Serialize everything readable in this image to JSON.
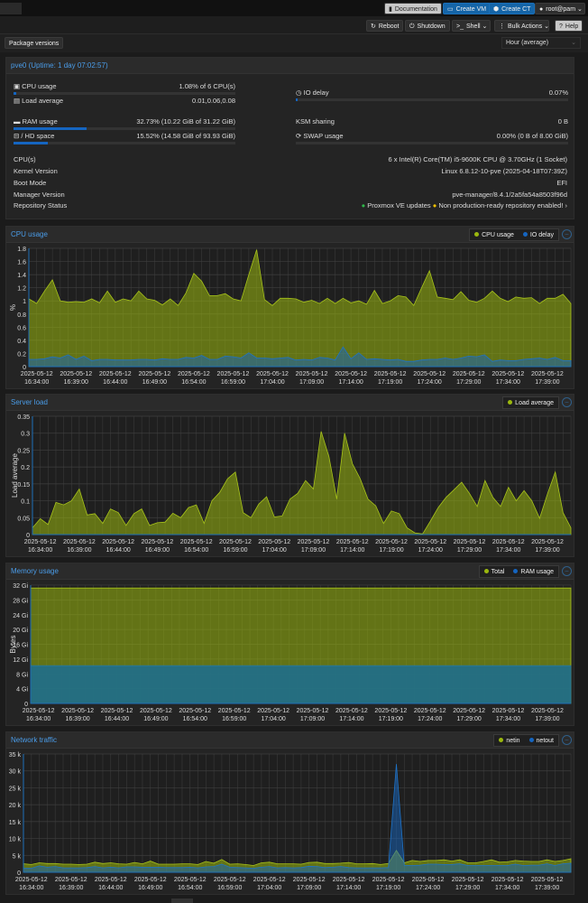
{
  "topbar": {
    "documentation": "Documentation",
    "create_vm": "Create VM",
    "create_ct": "Create CT",
    "user": "root@pam"
  },
  "toolbar": {
    "reboot": "Reboot",
    "shutdown": "Shutdown",
    "shell": "Shell",
    "bulk_actions": "Bulk Actions",
    "help": "Help"
  },
  "subbar": {
    "package_versions": "Package versions",
    "timeframe": "Hour (average)"
  },
  "summary": {
    "title": "pve0 (Uptime: 1 day 07:02:57)",
    "cpu_label": "CPU usage",
    "cpu_value": "1.08% of 6 CPU(s)",
    "cpu_pct": 1.08,
    "load_label": "Load average",
    "load_value": "0.01,0.06,0.08",
    "io_label": "IO delay",
    "io_value": "0.07%",
    "io_pct": 0.07,
    "ram_label": "RAM usage",
    "ram_value": "32.73% (10.22 GiB of 31.22 GiB)",
    "ram_pct": 32.73,
    "ksm_label": "KSM sharing",
    "ksm_value": "0 B",
    "hd_label": "/ HD space",
    "hd_value": "15.52% (14.58 GiB of 93.93 GiB)",
    "hd_pct": 15.52,
    "swap_label": "SWAP usage",
    "swap_value": "0.00% (0 B of 8.00 GiB)",
    "swap_pct": 0,
    "info": [
      {
        "label": "CPU(s)",
        "value": "6 x Intel(R) Core(TM) i5-9600K CPU @ 3.70GHz (1 Socket)"
      },
      {
        "label": "Kernel Version",
        "value": "Linux 6.8.12-10-pve (2025-04-18T07:39Z)"
      },
      {
        "label": "Boot Mode",
        "value": "EFI"
      },
      {
        "label": "Manager Version",
        "value": "pve-manager/8.4.1/2a5fa54a8503f96d"
      }
    ],
    "repo_label": "Repository Status",
    "repo_ok": "Proxmox VE updates",
    "repo_warn": "Non production-ready repository enabled!"
  },
  "colors": {
    "green": "#9bb80e",
    "blue": "#1565c0",
    "accent": "#4a9ce8"
  },
  "chart_data": [
    {
      "type": "area",
      "title": "CPU usage",
      "ylabel": "%",
      "ylim": [
        0,
        1.8
      ],
      "yticks": [
        "0",
        "0.2",
        "0.4",
        "0.6",
        "0.8",
        "1",
        "1.2",
        "1.4",
        "1.6",
        "1.8"
      ],
      "grid": true,
      "legend": "top-right",
      "x_date": "2025-05-12",
      "x_ticks": [
        "16:34:00",
        "16:39:00",
        "16:44:00",
        "16:49:00",
        "16:54:00",
        "16:59:00",
        "17:04:00",
        "17:09:00",
        "17:14:00",
        "17:19:00",
        "17:24:00",
        "17:29:00",
        "17:34:00",
        "17:39:00"
      ],
      "series": [
        {
          "name": "CPU usage",
          "color": "#9bb80e",
          "values": [
            1.03,
            0.96,
            1.15,
            1.32,
            1.0,
            0.98,
            0.99,
            0.98,
            1.03,
            0.97,
            1.15,
            0.98,
            1.03,
            1.0,
            1.15,
            1.03,
            1.01,
            0.94,
            1.03,
            0.93,
            1.12,
            1.42,
            1.3,
            1.08,
            1.08,
            1.11,
            1.03,
            1.0,
            1.4,
            1.78,
            1.02,
            0.93,
            1.04,
            1.04,
            1.03,
            0.98,
            1.01,
            0.96,
            1.04,
            0.96,
            1.04,
            0.97,
            1.0,
            0.95,
            1.16,
            0.96,
            1.0,
            1.08,
            1.06,
            0.93,
            1.2,
            1.46,
            1.06,
            1.04,
            1.02,
            1.14,
            1.01,
            0.98,
            1.04,
            1.15,
            1.04,
            0.99,
            1.06,
            1.04,
            1.05,
            0.96,
            1.04,
            1.04,
            1.1,
            0.96
          ]
        },
        {
          "name": "IO delay",
          "color": "#1565c0",
          "values": [
            0.11,
            0.11,
            0.12,
            0.15,
            0.13,
            0.18,
            0.11,
            0.16,
            0.09,
            0.11,
            0.11,
            0.1,
            0.1,
            0.1,
            0.11,
            0.11,
            0.1,
            0.12,
            0.11,
            0.11,
            0.14,
            0.13,
            0.17,
            0.11,
            0.11,
            0.16,
            0.15,
            0.13,
            0.21,
            0.13,
            0.13,
            0.12,
            0.13,
            0.14,
            0.1,
            0.11,
            0.1,
            0.14,
            0.13,
            0.1,
            0.3,
            0.12,
            0.21,
            0.11,
            0.12,
            0.11,
            0.1,
            0.11,
            0.08,
            0.08,
            0.1,
            0.11,
            0.11,
            0.13,
            0.11,
            0.13,
            0.16,
            0.15,
            0.18,
            0.08,
            0.1,
            0.09,
            0.09,
            0.11,
            0.12,
            0.13,
            0.11,
            0.14,
            0.09,
            0.09
          ]
        }
      ]
    },
    {
      "type": "area",
      "title": "Server load",
      "ylabel": "Load average",
      "ylim": [
        0,
        0.35
      ],
      "yticks": [
        "0",
        "0.05",
        "0.1",
        "0.15",
        "0.2",
        "0.25",
        "0.3",
        "0.35"
      ],
      "grid": true,
      "legend": "top-right",
      "x_date": "2025-05-12",
      "x_ticks": [
        "16:34:00",
        "16:39:00",
        "16:44:00",
        "16:49:00",
        "16:54:00",
        "16:59:00",
        "17:04:00",
        "17:09:00",
        "17:14:00",
        "17:19:00",
        "17:24:00",
        "17:29:00",
        "17:34:00",
        "17:39:00"
      ],
      "series": [
        {
          "name": "Load average",
          "color": "#9bb80e",
          "values": [
            0.02,
            0.047,
            0.03,
            0.095,
            0.088,
            0.1,
            0.135,
            0.058,
            0.062,
            0.033,
            0.076,
            0.065,
            0.027,
            0.062,
            0.076,
            0.027,
            0.035,
            0.037,
            0.063,
            0.05,
            0.08,
            0.088,
            0.033,
            0.1,
            0.125,
            0.165,
            0.185,
            0.065,
            0.05,
            0.09,
            0.112,
            0.052,
            0.055,
            0.105,
            0.122,
            0.16,
            0.135,
            0.305,
            0.23,
            0.105,
            0.3,
            0.21,
            0.165,
            0.105,
            0.085,
            0.033,
            0.07,
            0.062,
            0.02,
            0.005,
            0.002,
            0.04,
            0.08,
            0.11,
            0.132,
            0.155,
            0.122,
            0.083,
            0.16,
            0.11,
            0.083,
            0.14,
            0.1,
            0.13,
            0.1,
            0.048,
            0.12,
            0.185,
            0.065,
            0.02
          ]
        }
      ]
    },
    {
      "type": "area",
      "title": "Memory usage",
      "ylabel": "Bytes",
      "ylim": [
        0,
        32
      ],
      "yticks": [
        "0",
        "4 Gi",
        "8 Gi",
        "12 Gi",
        "16 Gi",
        "20 Gi",
        "24 Gi",
        "28 Gi",
        "32 Gi"
      ],
      "grid": true,
      "legend": "top-right",
      "x_date": "2025-05-12",
      "x_ticks": [
        "16:34:00",
        "16:39:00",
        "16:44:00",
        "16:49:00",
        "16:54:00",
        "16:59:00",
        "17:04:00",
        "17:09:00",
        "17:14:00",
        "17:19:00",
        "17:24:00",
        "17:29:00",
        "17:34:00",
        "17:39:00"
      ],
      "series": [
        {
          "name": "Total",
          "color": "#9bb80e",
          "values": [
            31.22,
            31.22,
            31.22,
            31.22,
            31.22,
            31.22,
            31.22,
            31.22,
            31.22,
            31.22,
            31.22,
            31.22,
            31.22,
            31.22,
            31.22,
            31.22,
            31.22,
            31.22,
            31.22,
            31.22,
            31.22,
            31.22,
            31.22,
            31.22,
            31.22,
            31.22,
            31.22,
            31.22,
            31.22,
            31.22,
            31.22,
            31.22,
            31.22,
            31.22,
            31.22,
            31.22,
            31.22,
            31.22,
            31.22,
            31.22,
            31.22,
            31.22,
            31.22,
            31.22,
            31.22,
            31.22,
            31.22,
            31.22,
            31.22,
            31.22,
            31.22,
            31.22,
            31.22,
            31.22,
            31.22,
            31.22,
            31.22,
            31.22,
            31.22,
            31.22,
            31.22,
            31.22,
            31.22,
            31.22,
            31.22,
            31.22,
            31.22,
            31.22,
            31.22,
            31.22
          ]
        },
        {
          "name": "RAM usage",
          "color": "#1565c0",
          "values": [
            10.2,
            10.2,
            10.2,
            10.2,
            10.2,
            10.2,
            10.2,
            10.2,
            10.2,
            10.2,
            10.2,
            10.2,
            10.2,
            10.2,
            10.2,
            10.2,
            10.2,
            10.2,
            10.2,
            10.2,
            10.2,
            10.2,
            10.2,
            10.2,
            10.2,
            10.2,
            10.2,
            10.2,
            10.2,
            10.2,
            10.2,
            10.2,
            10.2,
            10.2,
            10.2,
            10.2,
            10.2,
            10.2,
            10.2,
            10.2,
            10.2,
            10.2,
            10.2,
            10.2,
            10.2,
            10.2,
            10.2,
            10.2,
            10.2,
            10.2,
            10.2,
            10.2,
            10.2,
            10.2,
            10.2,
            10.2,
            10.2,
            10.2,
            10.2,
            10.2,
            10.2,
            10.2,
            10.2,
            10.2,
            10.2,
            10.2,
            10.2,
            10.2,
            10.2,
            10.2
          ]
        }
      ]
    },
    {
      "type": "area",
      "title": "Network traffic",
      "ylabel": "",
      "ylim": [
        0,
        35000
      ],
      "yticks": [
        "0",
        "5 k",
        "10 k",
        "15 k",
        "20 k",
        "25 k",
        "30 k",
        "35 k"
      ],
      "grid": true,
      "legend": "top-right",
      "x_date": "2025-05-12",
      "x_ticks": [
        "16:34:00",
        "16:39:00",
        "16:44:00",
        "16:49:00",
        "16:54:00",
        "16:59:00",
        "17:04:00",
        "17:09:00",
        "17:14:00",
        "17:19:00",
        "17:24:00",
        "17:29:00",
        "17:34:00",
        "17:39:00"
      ],
      "series": [
        {
          "name": "netin",
          "color": "#9bb80e",
          "values": [
            2500,
            2300,
            2800,
            2600,
            2600,
            2400,
            2400,
            2300,
            2400,
            3000,
            2600,
            2800,
            2500,
            2400,
            2900,
            2500,
            3300,
            2400,
            2400,
            2400,
            2500,
            2500,
            2300,
            3200,
            2700,
            3800,
            2400,
            2500,
            2300,
            2000,
            2800,
            3000,
            2500,
            2500,
            2500,
            2400,
            2900,
            3000,
            2600,
            2600,
            2700,
            2900,
            2500,
            2500,
            2600,
            2300,
            2600,
            6500,
            2800,
            3500,
            3200,
            3500,
            3500,
            3700,
            3300,
            3700,
            2800,
            2800,
            3200,
            3700,
            3000,
            3100,
            3500,
            3300,
            3200,
            3200,
            3700,
            3200,
            3500,
            4000
          ]
        },
        {
          "name": "netout",
          "color": "#1565c0",
          "values": [
            1200,
            1200,
            1900,
            1500,
            1700,
            1300,
            1300,
            1300,
            1400,
            1700,
            1300,
            1500,
            1300,
            1600,
            1600,
            1500,
            1500,
            1500,
            1400,
            1400,
            1400,
            1500,
            1300,
            1600,
            1700,
            2400,
            1500,
            1400,
            1300,
            1200,
            1500,
            1700,
            1300,
            1400,
            1300,
            1400,
            1800,
            1700,
            1400,
            1500,
            1700,
            1400,
            1300,
            1300,
            1300,
            1300,
            1400,
            32000,
            2000,
            2000,
            2100,
            2400,
            2400,
            2300,
            2300,
            2500,
            2000,
            2000,
            2000,
            2000,
            2000,
            2000,
            2400,
            2000,
            2100,
            2100,
            2500,
            2000,
            2500,
            2700
          ]
        }
      ]
    }
  ]
}
